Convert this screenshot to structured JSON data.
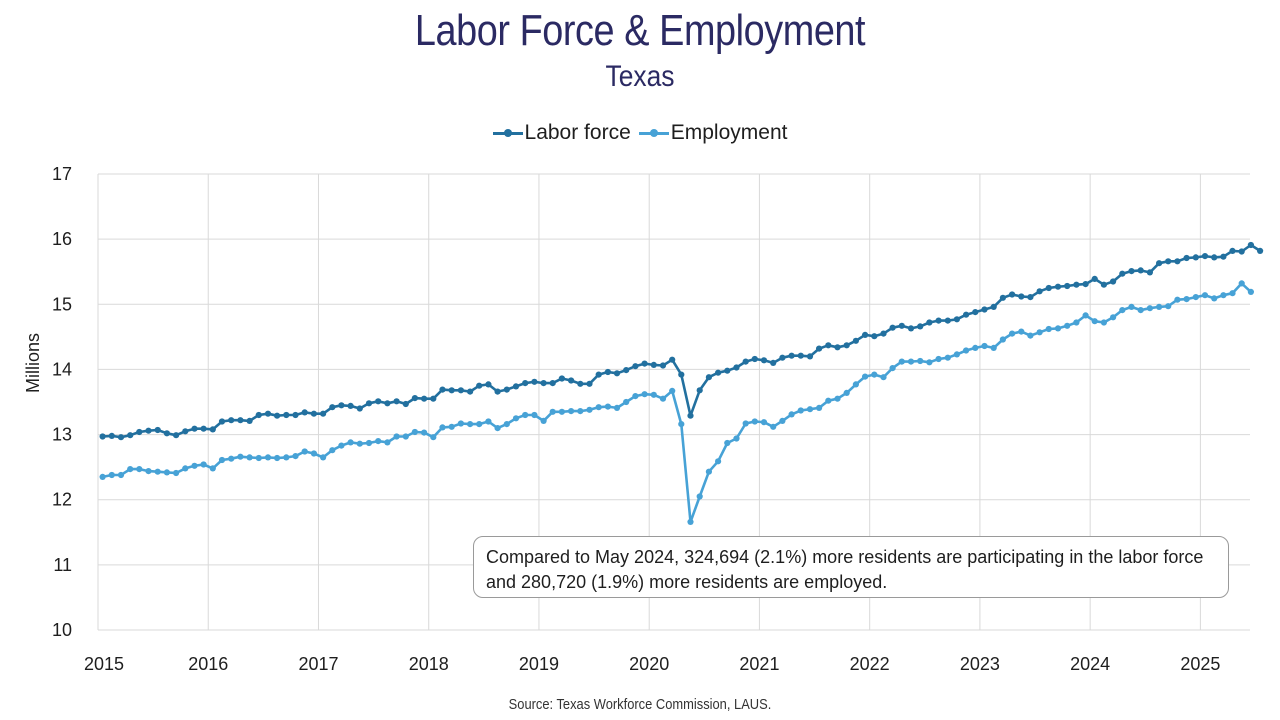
{
  "chart_data": {
    "type": "line",
    "title": "Labor Force & Employment",
    "subtitle": "Texas",
    "ylabel": "Millions",
    "xlabel": "",
    "ylim": [
      10,
      17
    ],
    "yticks": [
      "10",
      "11",
      "12",
      "13",
      "14",
      "15",
      "16",
      "17"
    ],
    "xticks": [
      "2015",
      "2016",
      "2017",
      "2018",
      "2019",
      "2020",
      "2021",
      "2022",
      "2023",
      "2024",
      "2025"
    ],
    "start": "2015-01",
    "legend_position": "top-center",
    "series": [
      {
        "name": "Labor force",
        "color": "#22709f",
        "values": [
          12.97,
          12.98,
          12.96,
          12.99,
          13.04,
          13.06,
          13.07,
          13.02,
          12.99,
          13.05,
          13.09,
          13.09,
          13.08,
          13.2,
          13.22,
          13.22,
          13.21,
          13.3,
          13.32,
          13.29,
          13.3,
          13.3,
          13.34,
          13.32,
          13.32,
          13.42,
          13.45,
          13.44,
          13.4,
          13.48,
          13.51,
          13.48,
          13.51,
          13.47,
          13.56,
          13.55,
          13.55,
          13.69,
          13.68,
          13.68,
          13.66,
          13.75,
          13.77,
          13.66,
          13.69,
          13.74,
          13.79,
          13.81,
          13.79,
          13.79,
          13.86,
          13.83,
          13.78,
          13.78,
          13.92,
          13.96,
          13.94,
          13.99,
          14.05,
          14.09,
          14.07,
          14.06,
          14.15,
          13.92,
          13.29,
          13.68,
          13.88,
          13.95,
          13.98,
          14.03,
          14.12,
          14.16,
          14.14,
          14.1,
          14.18,
          14.21,
          14.21,
          14.2,
          14.32,
          14.37,
          14.34,
          14.37,
          14.44,
          14.53,
          14.51,
          14.55,
          14.64,
          14.67,
          14.63,
          14.66,
          14.72,
          14.75,
          14.75,
          14.77,
          14.84,
          14.88,
          14.92,
          14.96,
          15.1,
          15.15,
          15.12,
          15.11,
          15.2,
          15.25,
          15.27,
          15.28,
          15.3,
          15.31,
          15.39,
          15.3,
          15.35,
          15.47,
          15.51,
          15.52,
          15.49,
          15.63,
          15.66,
          15.66,
          15.71,
          15.72,
          15.74,
          15.72,
          15.73,
          15.82,
          15.81,
          15.91,
          15.82
        ]
      },
      {
        "name": "Employment",
        "color": "#47a2d6",
        "values": [
          12.35,
          12.38,
          12.38,
          12.47,
          12.47,
          12.44,
          12.43,
          12.42,
          12.41,
          12.48,
          12.52,
          12.54,
          12.48,
          12.61,
          12.63,
          12.66,
          12.65,
          12.64,
          12.65,
          12.64,
          12.65,
          12.67,
          12.74,
          12.71,
          12.65,
          12.76,
          12.83,
          12.88,
          12.86,
          12.87,
          12.9,
          12.88,
          12.97,
          12.97,
          13.04,
          13.03,
          12.96,
          13.11,
          13.12,
          13.17,
          13.16,
          13.16,
          13.2,
          13.1,
          13.16,
          13.25,
          13.3,
          13.3,
          13.21,
          13.35,
          13.35,
          13.36,
          13.36,
          13.38,
          13.42,
          13.43,
          13.41,
          13.5,
          13.59,
          13.62,
          13.61,
          13.55,
          13.67,
          13.16,
          11.66,
          12.05,
          12.43,
          12.59,
          12.87,
          12.94,
          13.17,
          13.2,
          13.19,
          13.12,
          13.21,
          13.31,
          13.37,
          13.39,
          13.41,
          13.52,
          13.55,
          13.64,
          13.77,
          13.89,
          13.92,
          13.88,
          14.02,
          14.12,
          14.12,
          14.13,
          14.11,
          14.16,
          14.18,
          14.23,
          14.29,
          14.33,
          14.36,
          14.33,
          14.46,
          14.55,
          14.58,
          14.52,
          14.57,
          14.62,
          14.63,
          14.67,
          14.72,
          14.83,
          14.74,
          14.72,
          14.8,
          14.91,
          14.96,
          14.91,
          14.94,
          14.96,
          14.97,
          15.07,
          15.08,
          15.11,
          15.14,
          15.09,
          15.14,
          15.17,
          15.32,
          15.19
        ]
      }
    ],
    "annotation": "Compared to May 2024, 324,694 (2.1%) more residents are participating in the labor force and 280,720 (1.9%) more residents are employed.",
    "source": "Source: Texas Workforce Commission, LAUS."
  }
}
